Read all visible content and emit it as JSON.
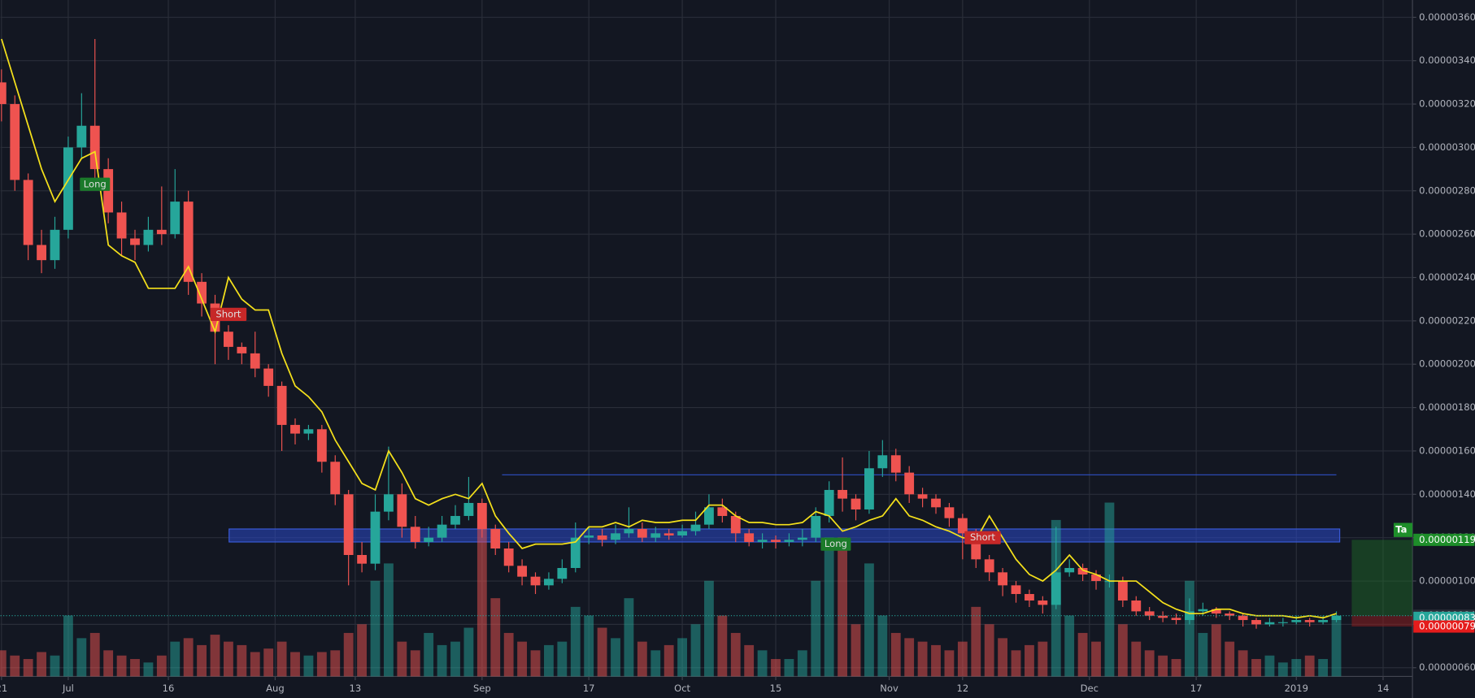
{
  "chart_data": {
    "type": "candlestick",
    "x": [
      0,
      2,
      4,
      6,
      8,
      10,
      12,
      14,
      16,
      18,
      20,
      22,
      24,
      26,
      28,
      30,
      32,
      34,
      36,
      38,
      40,
      42,
      44,
      46,
      48,
      50,
      52,
      54,
      56,
      58,
      60,
      62,
      64,
      66,
      68,
      70,
      72,
      74,
      76,
      78,
      80,
      82,
      84,
      86,
      88,
      90,
      92,
      94,
      96,
      98,
      100,
      102,
      104,
      106,
      108,
      110,
      112,
      114,
      116,
      118,
      120,
      122,
      124,
      126,
      128,
      130,
      132,
      134,
      136,
      138,
      140,
      142,
      144,
      146,
      148,
      150,
      152,
      154,
      156,
      158,
      160,
      162,
      164,
      166,
      168,
      170,
      172,
      174,
      176,
      178,
      180,
      182,
      184,
      186,
      188,
      190,
      192,
      194,
      196,
      198,
      200
    ],
    "open": [
      3.3e-06,
      3.2e-06,
      2.85e-06,
      2.55e-06,
      2.48e-06,
      2.62e-06,
      3e-06,
      3.1e-06,
      2.9e-06,
      2.7e-06,
      2.58e-06,
      2.55e-06,
      2.62e-06,
      2.6e-06,
      2.75e-06,
      2.38e-06,
      2.28e-06,
      2.15e-06,
      2.08e-06,
      2.05e-06,
      1.98e-06,
      1.9e-06,
      1.72e-06,
      1.68e-06,
      1.7e-06,
      1.55e-06,
      1.4e-06,
      1.12e-06,
      1.08e-06,
      1.32e-06,
      1.4e-06,
      1.25e-06,
      1.18e-06,
      1.2e-06,
      1.26e-06,
      1.3e-06,
      1.36e-06,
      1.24e-06,
      1.15e-06,
      1.07e-06,
      1.02e-06,
      9.8e-07,
      1.01e-06,
      1.06e-06,
      1.2e-06,
      1.21e-06,
      1.19e-06,
      1.22e-06,
      1.24e-06,
      1.2e-06,
      1.22e-06,
      1.21e-06,
      1.23e-06,
      1.26e-06,
      1.34e-06,
      1.3e-06,
      1.22e-06,
      1.18e-06,
      1.19e-06,
      1.18e-06,
      1.19e-06,
      1.2e-06,
      1.3e-06,
      1.42e-06,
      1.38e-06,
      1.33e-06,
      1.52e-06,
      1.58e-06,
      1.5e-06,
      1.4e-06,
      1.38e-06,
      1.34e-06,
      1.29e-06,
      1.22e-06,
      1.1e-06,
      1.04e-06,
      9.8e-07,
      9.4e-07,
      9.1e-07,
      8.9e-07,
      1.04e-06,
      1.06e-06,
      1.03e-06,
      1e-06,
      1e-06,
      9.1e-07,
      8.6e-07,
      8.4e-07,
      8.3e-07,
      8.2e-07,
      8.6e-07,
      8.7e-07,
      8.5e-07,
      8.4e-07,
      8.2e-07,
      8e-07,
      8.1e-07,
      8.1e-07,
      8.2e-07,
      8.1e-07,
      8.2e-07
    ],
    "high": [
      3.36e-06,
      3.24e-06,
      2.88e-06,
      2.62e-06,
      2.68e-06,
      3.05e-06,
      3.25e-06,
      3.5e-06,
      2.95e-06,
      2.75e-06,
      2.62e-06,
      2.68e-06,
      2.82e-06,
      2.9e-06,
      2.8e-06,
      2.42e-06,
      2.32e-06,
      2.18e-06,
      2.1e-06,
      2.15e-06,
      2e-06,
      1.92e-06,
      1.75e-06,
      1.72e-06,
      1.72e-06,
      1.58e-06,
      1.42e-06,
      1.18e-06,
      1.4e-06,
      1.62e-06,
      1.45e-06,
      1.3e-06,
      1.25e-06,
      1.3e-06,
      1.35e-06,
      1.48e-06,
      1.38e-06,
      1.26e-06,
      1.18e-06,
      1.1e-06,
      1.04e-06,
      1.04e-06,
      1.1e-06,
      1.27e-06,
      1.25e-06,
      1.24e-06,
      1.26e-06,
      1.34e-06,
      1.27e-06,
      1.25e-06,
      1.24e-06,
      1.26e-06,
      1.32e-06,
      1.4e-06,
      1.38e-06,
      1.32e-06,
      1.24e-06,
      1.22e-06,
      1.21e-06,
      1.22e-06,
      1.24e-06,
      1.34e-06,
      1.46e-06,
      1.57e-06,
      1.4e-06,
      1.6e-06,
      1.65e-06,
      1.61e-06,
      1.53e-06,
      1.43e-06,
      1.4e-06,
      1.36e-06,
      1.31e-06,
      1.24e-06,
      1.12e-06,
      1.06e-06,
      1e-06,
      9.6e-07,
      9.3e-07,
      1.25e-06,
      1.1e-06,
      1.08e-06,
      1.05e-06,
      1.03e-06,
      1.02e-06,
      9.3e-07,
      8.8e-07,
      8.6e-07,
      8.5e-07,
      9.2e-07,
      9e-07,
      8.8e-07,
      8.6e-07,
      8.5e-07,
      8.3e-07,
      8.3e-07,
      8.3e-07,
      8.4e-07,
      8.3e-07,
      8.4e-07,
      8.6e-07
    ],
    "low": [
      3.12e-06,
      2.8e-06,
      2.48e-06,
      2.42e-06,
      2.44e-06,
      2.58e-06,
      2.95e-06,
      2.85e-06,
      2.65e-06,
      2.5e-06,
      2.48e-06,
      2.52e-06,
      2.55e-06,
      2.58e-06,
      2.32e-06,
      2.22e-06,
      2e-06,
      2.02e-06,
      2e-06,
      1.94e-06,
      1.85e-06,
      1.6e-06,
      1.63e-06,
      1.65e-06,
      1.5e-06,
      1.35e-06,
      9.8e-07,
      1.04e-06,
      1.05e-06,
      1.28e-06,
      1.2e-06,
      1.15e-06,
      1.16e-06,
      1.18e-06,
      1.24e-06,
      1.28e-06,
      1.2e-06,
      1.12e-06,
      1.04e-06,
      9.8e-07,
      9.4e-07,
      9.6e-07,
      9.9e-07,
      1.04e-06,
      1.17e-06,
      1.16e-06,
      1.17e-06,
      1.2e-06,
      1.18e-06,
      1.18e-06,
      1.19e-06,
      1.2e-06,
      1.21e-06,
      1.24e-06,
      1.27e-06,
      1.18e-06,
      1.16e-06,
      1.15e-06,
      1.15e-06,
      1.16e-06,
      1.16e-06,
      1.18e-06,
      1.27e-06,
      1.32e-06,
      1.28e-06,
      1.31e-06,
      1.48e-06,
      1.46e-06,
      1.36e-06,
      1.34e-06,
      1.31e-06,
      1.25e-06,
      1.1e-06,
      1.06e-06,
      1e-06,
      9.3e-07,
      9e-07,
      8.8e-07,
      8.5e-07,
      8.7e-07,
      1.02e-06,
      1e-06,
      9.6e-07,
      9.7e-07,
      8.8e-07,
      8.4e-07,
      8.2e-07,
      8.1e-07,
      8e-07,
      8e-07,
      8.4e-07,
      8.3e-07,
      8.2e-07,
      7.9e-07,
      7.8e-07,
      7.9e-07,
      7.9e-07,
      8e-07,
      7.9e-07,
      8e-07,
      8.1e-07
    ],
    "close": [
      3.2e-06,
      2.85e-06,
      2.55e-06,
      2.48e-06,
      2.62e-06,
      3e-06,
      3.1e-06,
      2.9e-06,
      2.7e-06,
      2.58e-06,
      2.55e-06,
      2.62e-06,
      2.6e-06,
      2.75e-06,
      2.38e-06,
      2.28e-06,
      2.15e-06,
      2.08e-06,
      2.05e-06,
      1.98e-06,
      1.9e-06,
      1.72e-06,
      1.68e-06,
      1.7e-06,
      1.55e-06,
      1.4e-06,
      1.12e-06,
      1.08e-06,
      1.32e-06,
      1.4e-06,
      1.25e-06,
      1.18e-06,
      1.2e-06,
      1.26e-06,
      1.3e-06,
      1.36e-06,
      1.24e-06,
      1.15e-06,
      1.07e-06,
      1.02e-06,
      9.8e-07,
      1.01e-06,
      1.06e-06,
      1.2e-06,
      1.21e-06,
      1.19e-06,
      1.22e-06,
      1.24e-06,
      1.2e-06,
      1.22e-06,
      1.21e-06,
      1.23e-06,
      1.26e-06,
      1.34e-06,
      1.3e-06,
      1.22e-06,
      1.18e-06,
      1.19e-06,
      1.18e-06,
      1.19e-06,
      1.2e-06,
      1.3e-06,
      1.42e-06,
      1.38e-06,
      1.33e-06,
      1.52e-06,
      1.58e-06,
      1.5e-06,
      1.4e-06,
      1.38e-06,
      1.34e-06,
      1.29e-06,
      1.22e-06,
      1.1e-06,
      1.04e-06,
      9.8e-07,
      9.4e-07,
      9.1e-07,
      8.9e-07,
      1.04e-06,
      1.06e-06,
      1.03e-06,
      1e-06,
      1e-06,
      9.1e-07,
      8.6e-07,
      8.4e-07,
      8.3e-07,
      8.2e-07,
      8.6e-07,
      8.7e-07,
      8.5e-07,
      8.4e-07,
      8.2e-07,
      8e-07,
      8.1e-07,
      8.1e-07,
      8.2e-07,
      8.1e-07,
      8.2e-07,
      8.4e-07
    ],
    "ma": [
      3.5e-06,
      3.3e-06,
      3.1e-06,
      2.9e-06,
      2.75e-06,
      2.85e-06,
      2.95e-06,
      2.98e-06,
      2.55e-06,
      2.5e-06,
      2.47e-06,
      2.35e-06,
      2.35e-06,
      2.35e-06,
      2.45e-06,
      2.3e-06,
      2.15e-06,
      2.4e-06,
      2.3e-06,
      2.25e-06,
      2.25e-06,
      2.05e-06,
      1.9e-06,
      1.85e-06,
      1.78e-06,
      1.65e-06,
      1.55e-06,
      1.45e-06,
      1.42e-06,
      1.6e-06,
      1.5e-06,
      1.38e-06,
      1.35e-06,
      1.38e-06,
      1.4e-06,
      1.38e-06,
      1.45e-06,
      1.3e-06,
      1.22e-06,
      1.15e-06,
      1.17e-06,
      1.17e-06,
      1.17e-06,
      1.18e-06,
      1.25e-06,
      1.25e-06,
      1.27e-06,
      1.25e-06,
      1.28e-06,
      1.27e-06,
      1.27e-06,
      1.28e-06,
      1.28e-06,
      1.35e-06,
      1.35e-06,
      1.3e-06,
      1.27e-06,
      1.27e-06,
      1.26e-06,
      1.26e-06,
      1.27e-06,
      1.32e-06,
      1.3e-06,
      1.23e-06,
      1.25e-06,
      1.28e-06,
      1.3e-06,
      1.38e-06,
      1.3e-06,
      1.28e-06,
      1.25e-06,
      1.23e-06,
      1.2e-06,
      1.19e-06,
      1.3e-06,
      1.2e-06,
      1.1e-06,
      1.03e-06,
      1e-06,
      1.05e-06,
      1.12e-06,
      1.05e-06,
      1.03e-06,
      1e-06,
      1e-06,
      1e-06,
      9.5e-07,
      9e-07,
      8.7e-07,
      8.5e-07,
      8.5e-07,
      8.7e-07,
      8.7e-07,
      8.5e-07,
      8.4e-07,
      8.4e-07,
      8.4e-07,
      8.3e-07,
      8.4e-07,
      8.3e-07,
      8.5e-07
    ],
    "volume": [
      15,
      12,
      10,
      14,
      12,
      35,
      22,
      25,
      15,
      12,
      10,
      8,
      12,
      20,
      22,
      18,
      24,
      20,
      18,
      14,
      16,
      20,
      14,
      12,
      14,
      15,
      25,
      30,
      55,
      65,
      20,
      15,
      25,
      18,
      20,
      28,
      90,
      45,
      25,
      20,
      15,
      18,
      20,
      40,
      35,
      28,
      22,
      45,
      20,
      15,
      18,
      22,
      30,
      55,
      35,
      25,
      18,
      15,
      10,
      10,
      15,
      55,
      80,
      80,
      30,
      65,
      35,
      25,
      22,
      20,
      18,
      15,
      20,
      40,
      30,
      22,
      15,
      18,
      20,
      90,
      35,
      25,
      20,
      100,
      30,
      20,
      15,
      12,
      10,
      55,
      25,
      30,
      20,
      15,
      10,
      12,
      8,
      10,
      12,
      10,
      35
    ],
    "up_color": "#26a69a",
    "down_color": "#ef5350",
    "ma_color": "#f5e11b",
    "xlim": [
      -0.15,
      211.4
    ],
    "ylim": [
      5.6e-07,
      3.68e-06
    ],
    "y2lim": [
      0,
      100
    ],
    "xticks": [
      {
        "value": 0,
        "label": "21"
      },
      {
        "value": 10,
        "label": "Jul"
      },
      {
        "value": 25,
        "label": "16"
      },
      {
        "value": 41,
        "label": "Aug"
      },
      {
        "value": 53,
        "label": "13"
      },
      {
        "value": 72,
        "label": "Sep"
      },
      {
        "value": 88,
        "label": "17"
      },
      {
        "value": 102,
        "label": "Oct"
      },
      {
        "value": 116,
        "label": "15"
      },
      {
        "value": 133,
        "label": "Nov"
      },
      {
        "value": 144,
        "label": "12"
      },
      {
        "value": 163,
        "label": "Dec"
      },
      {
        "value": 179,
        "label": "17"
      },
      {
        "value": 194,
        "label": "2019"
      },
      {
        "value": 207,
        "label": "14"
      }
    ],
    "yticks": [
      {
        "value": 6e-07,
        "label": "0.00000060"
      },
      {
        "value": 8e-07,
        "label": "0.00000080"
      },
      {
        "value": 1e-06,
        "label": "0.00000100"
      },
      {
        "value": 1.2e-06,
        "label": "0.00000120"
      },
      {
        "value": 1.4e-06,
        "label": "0.00000140"
      },
      {
        "value": 1.6e-06,
        "label": "0.00000160"
      },
      {
        "value": 1.8e-06,
        "label": "0.00000180"
      },
      {
        "value": 2e-06,
        "label": "0.00000200"
      },
      {
        "value": 2.2e-06,
        "label": "0.00000220"
      },
      {
        "value": 2.4e-06,
        "label": "0.00000240"
      },
      {
        "value": 2.6e-06,
        "label": "0.00000260"
      },
      {
        "value": 2.8e-06,
        "label": "0.00000280"
      },
      {
        "value": 3e-06,
        "label": "0.00000300"
      },
      {
        "value": 3.2e-06,
        "label": "0.00000320"
      },
      {
        "value": 3.4e-06,
        "label": "0.00000340"
      },
      {
        "value": 3.6e-06,
        "label": "0.00000360"
      }
    ],
    "grid": true,
    "annotations": [
      {
        "text": "Long",
        "x": 14,
        "y": 2.83e-06,
        "color": "#1b7a2a"
      },
      {
        "text": "Short",
        "x": 34,
        "y": 2.23e-06,
        "color": "#c62828"
      },
      {
        "text": "Long",
        "x": 125,
        "y": 1.17e-06,
        "color": "#1b7a2a"
      },
      {
        "text": "Short",
        "x": 147,
        "y": 1.2e-06,
        "color": "#c62828"
      }
    ],
    "zone": {
      "x": [
        34.1,
        200.5
      ],
      "y": [
        1.18e-06,
        1.24e-06
      ]
    },
    "resistance": {
      "x": [
        75,
        200
      ],
      "y": 1.49e-06
    },
    "position": {
      "x": [
        202.3,
        211.4
      ],
      "entry": 8.4e-07,
      "target": 1.19e-06,
      "stop": 7.9e-07,
      "label": "Ta"
    },
    "price_labels": [
      {
        "value": 1.19e-06,
        "label": "0.00000119",
        "color": "#1e8e2a"
      },
      {
        "value": 8.4e-07,
        "label": "0.00000084",
        "color": "#2a2e39"
      },
      {
        "value": 8.3e-07,
        "label": "0.00000083",
        "color": "#26a69a"
      },
      {
        "value": 7.9e-07,
        "label": "0.00000079",
        "color": "#e51c1c"
      }
    ]
  }
}
